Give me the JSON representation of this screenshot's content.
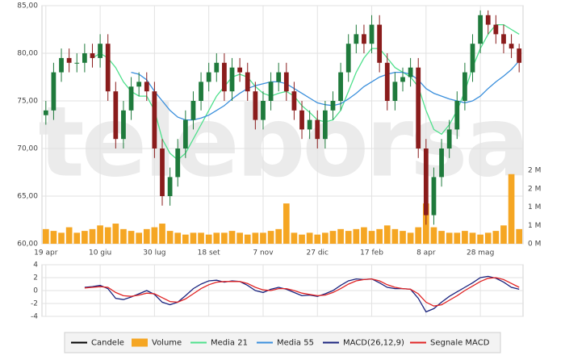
{
  "chart_data": [
    {
      "type": "candlestick",
      "watermark": "teleborsa",
      "xlim": [
        -0.5,
        61.5
      ],
      "xticks": [
        {
          "value": 0,
          "label": "19 apr"
        },
        {
          "value": 7,
          "label": "10 giu"
        },
        {
          "value": 14,
          "label": "30 lug"
        },
        {
          "value": 21,
          "label": "18 set"
        },
        {
          "value": 28,
          "label": "7 nov"
        },
        {
          "value": 35,
          "label": "27 dic"
        },
        {
          "value": 42,
          "label": "17 feb"
        },
        {
          "value": 49,
          "label": "8 apr"
        },
        {
          "value": 56,
          "label": "28 mag"
        }
      ],
      "ylim": [
        60,
        85
      ],
      "yticks": [
        {
          "value": 85,
          "label": "85,00"
        },
        {
          "value": 80,
          "label": "80,00"
        },
        {
          "value": 75,
          "label": "75,00"
        },
        {
          "value": 70,
          "label": "70,00"
        },
        {
          "value": 65,
          "label": "65,00"
        },
        {
          "value": 60,
          "label": "60,00"
        }
      ],
      "y2lim": [
        0,
        6500000
      ],
      "y2ticks": [
        {
          "value": 0,
          "label": "0 M"
        },
        {
          "value": 500000,
          "label": "1 M"
        },
        {
          "value": 1000000,
          "label": "1 M"
        },
        {
          "value": 1500000,
          "label": "2 M"
        },
        {
          "value": 2000000,
          "label": "2 M"
        }
      ],
      "grid": true,
      "up_color": "#1f7a3c",
      "down_color": "#8a1c1c",
      "series": [
        {
          "name": "Candele",
          "color": "#000000",
          "open": [
            73.5,
            74,
            78,
            79.5,
            79,
            79,
            80,
            79.5,
            81,
            76,
            71,
            74,
            76.5,
            77,
            76,
            70,
            65,
            67,
            70,
            73,
            75,
            77,
            78,
            79,
            76,
            78.5,
            78,
            76,
            73,
            75,
            77,
            78,
            76,
            74,
            72,
            73,
            71,
            74,
            75,
            78,
            81,
            82,
            81,
            83,
            79,
            75,
            77,
            77.5,
            78.5,
            70,
            63,
            67,
            70,
            72,
            75,
            78,
            81,
            84,
            83,
            82,
            81,
            80.5
          ],
          "high": [
            75,
            79,
            80.5,
            80.5,
            80,
            81,
            81,
            82,
            82,
            77,
            75,
            77.5,
            78,
            78,
            77,
            71,
            68,
            71,
            74,
            76,
            78,
            79,
            80,
            80,
            79.5,
            79.5,
            79,
            77,
            76,
            78,
            79,
            79,
            77,
            75,
            74,
            74,
            75,
            76,
            79,
            82,
            83,
            83,
            84,
            84,
            80,
            78,
            78.5,
            79.5,
            79.5,
            71,
            68,
            71,
            73,
            76,
            79,
            82,
            84.5,
            84.5,
            84,
            83,
            82,
            81
          ],
          "low": [
            72.5,
            73,
            77,
            78,
            78,
            78,
            78.5,
            78.5,
            75,
            70,
            70,
            73,
            75.5,
            75,
            69,
            64,
            64,
            66,
            69,
            72,
            74,
            76,
            77,
            75,
            75,
            77,
            75,
            72,
            72,
            74,
            76,
            75,
            73,
            71,
            71,
            70,
            70,
            73,
            74,
            77,
            80,
            80,
            80,
            78,
            74,
            74,
            76,
            76.5,
            69,
            62,
            62,
            66,
            69,
            71,
            74,
            77,
            80,
            82,
            81,
            80,
            79.5,
            78
          ],
          "close": [
            74,
            78,
            79.5,
            79,
            79,
            80,
            79.5,
            81,
            76,
            71,
            74,
            76.5,
            77,
            76,
            70,
            65,
            67,
            70,
            73,
            75,
            77,
            78,
            79,
            76,
            78.5,
            78,
            76,
            73,
            75,
            77,
            78,
            76,
            74,
            72,
            73,
            71,
            74,
            75,
            78,
            81,
            82,
            81,
            83,
            79,
            75,
            77,
            77.5,
            78.5,
            70,
            63,
            67,
            70,
            72,
            75,
            78,
            81,
            84,
            83,
            82,
            81,
            80.5,
            79
          ]
        },
        {
          "name": "Volume",
          "color": "#f5a623",
          "axis": "y2",
          "values": [
            400000,
            350000,
            300000,
            450000,
            300000,
            350000,
            400000,
            500000,
            450000,
            550000,
            400000,
            350000,
            300000,
            400000,
            450000,
            550000,
            350000,
            300000,
            250000,
            300000,
            300000,
            250000,
            300000,
            300000,
            350000,
            300000,
            250000,
            300000,
            300000,
            350000,
            400000,
            1100000,
            300000,
            250000,
            300000,
            250000,
            300000,
            350000,
            400000,
            350000,
            400000,
            450000,
            350000,
            400000,
            500000,
            400000,
            350000,
            300000,
            450000,
            1100000,
            450000,
            350000,
            300000,
            300000,
            350000,
            300000,
            250000,
            300000,
            350000,
            500000,
            1900000,
            400000
          ]
        },
        {
          "name": "Media 21",
          "color": "#4fe08c",
          "values": [
            null,
            null,
            null,
            null,
            null,
            null,
            79.5,
            80,
            79.5,
            78.5,
            77,
            76,
            75.5,
            75.5,
            74,
            71,
            69.5,
            68.8,
            69.5,
            71,
            72.5,
            74,
            75.5,
            76.5,
            77.5,
            77.8,
            77.5,
            76.5,
            75.8,
            75.5,
            75.8,
            76,
            75.5,
            74.5,
            73.8,
            73,
            72.8,
            73,
            74,
            76,
            78,
            79.5,
            80.5,
            80.5,
            79.5,
            78.5,
            78,
            77.5,
            76.5,
            74,
            72,
            71.5,
            72.5,
            74,
            76,
            78.5,
            80.5,
            82,
            83,
            83,
            82.5,
            82
          ]
        },
        {
          "name": "Media 55",
          "color": "#3a8fdc",
          "values": [
            null,
            null,
            null,
            null,
            null,
            null,
            null,
            null,
            null,
            null,
            null,
            78,
            77.8,
            77.2,
            76,
            75,
            74,
            73.3,
            73,
            73,
            73.2,
            73.5,
            74,
            74.5,
            75.2,
            75.8,
            76.3,
            76.6,
            76.8,
            77,
            77,
            76.8,
            76.3,
            75.8,
            75.3,
            74.8,
            74.6,
            74.5,
            74.7,
            75.2,
            75.8,
            76.5,
            77,
            77.5,
            77.8,
            78,
            78,
            77.8,
            77.2,
            76.3,
            75.8,
            75.5,
            75.2,
            75,
            74.8,
            75,
            75.5,
            76.3,
            77,
            77.6,
            78.3,
            79.2
          ]
        }
      ]
    },
    {
      "type": "line",
      "xlim": [
        -0.5,
        61.5
      ],
      "ylim": [
        -4,
        4
      ],
      "yticks": [
        4,
        2,
        0,
        -2,
        -4
      ],
      "grid": true,
      "series": [
        {
          "name": "MACD(26,12,9)",
          "color": "#1a237e",
          "values": [
            null,
            null,
            null,
            null,
            null,
            0.5,
            0.6,
            0.8,
            0.3,
            -1.2,
            -1.4,
            -1,
            -0.5,
            0,
            -0.6,
            -1.8,
            -2.2,
            -1.8,
            -0.8,
            0.3,
            1,
            1.5,
            1.6,
            1.3,
            1.5,
            1.4,
            0.8,
            0,
            -0.3,
            0.2,
            0.5,
            0.2,
            -0.3,
            -0.8,
            -0.7,
            -0.9,
            -0.5,
            0,
            0.8,
            1.5,
            1.8,
            1.7,
            1.8,
            1.2,
            0.5,
            0.3,
            0.3,
            0.2,
            -1.2,
            -3.3,
            -2.8,
            -1.8,
            -0.9,
            -0.2,
            0.5,
            1.2,
            2,
            2.2,
            1.9,
            1.3,
            0.5,
            0.2
          ]
        },
        {
          "name": "Segnale MACD",
          "color": "#e02424",
          "values": [
            null,
            null,
            null,
            null,
            null,
            0.4,
            0.5,
            0.6,
            0.5,
            -0.3,
            -0.8,
            -0.9,
            -0.7,
            -0.4,
            -0.5,
            -1.1,
            -1.7,
            -1.8,
            -1.3,
            -0.5,
            0.3,
            0.9,
            1.3,
            1.4,
            1.4,
            1.4,
            1.1,
            0.5,
            0.1,
            0,
            0.3,
            0.3,
            0,
            -0.4,
            -0.6,
            -0.8,
            -0.7,
            -0.3,
            0.3,
            1,
            1.5,
            1.7,
            1.8,
            1.5,
            0.9,
            0.5,
            0.3,
            0.2,
            -0.5,
            -1.8,
            -2.4,
            -2.2,
            -1.5,
            -0.8,
            0,
            0.7,
            1.4,
            1.9,
            2,
            1.7,
            1.1,
            0.5
          ]
        }
      ]
    }
  ]
}
